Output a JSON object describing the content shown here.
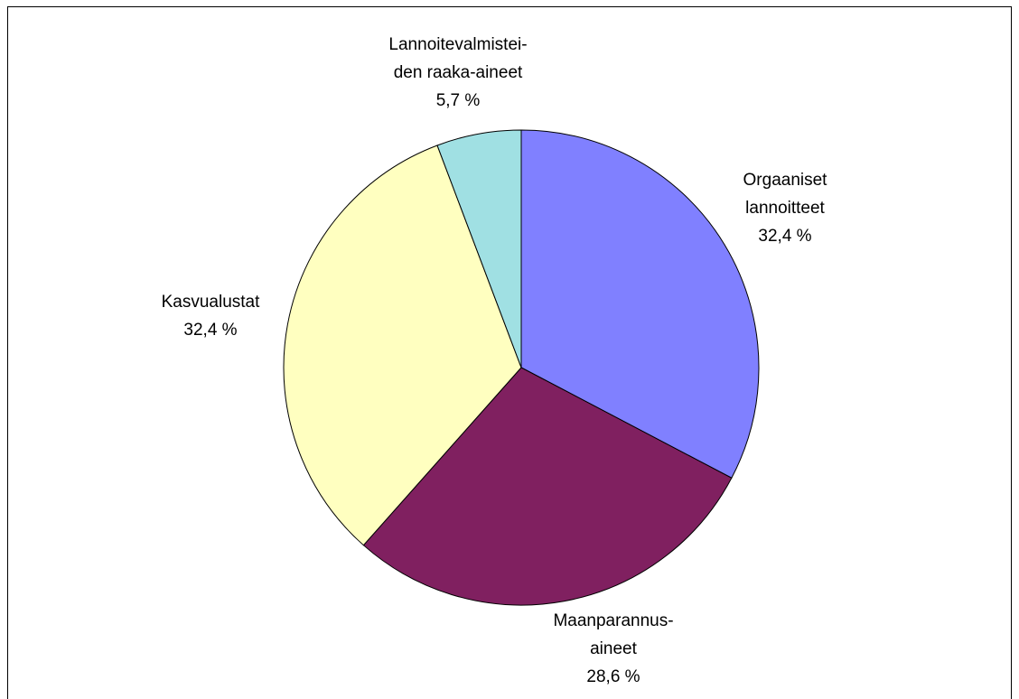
{
  "chart_data": {
    "type": "pie",
    "categories": [
      [
        "Orgaaniset",
        "lannoitteet"
      ],
      [
        "Maanparannus-",
        "aineet"
      ],
      [
        "Kasvualustat"
      ],
      [
        "Lannoitevalmistei-",
        "den raaka-aineet"
      ]
    ],
    "values": [
      32.4,
      28.6,
      32.4,
      5.7
    ],
    "value_labels": [
      "32,4 %",
      "28,6 %",
      "32,4 %",
      "5,7 %"
    ],
    "colors": [
      "#8080ff",
      "#802060",
      "#ffffc0",
      "#a0e0e3"
    ]
  }
}
